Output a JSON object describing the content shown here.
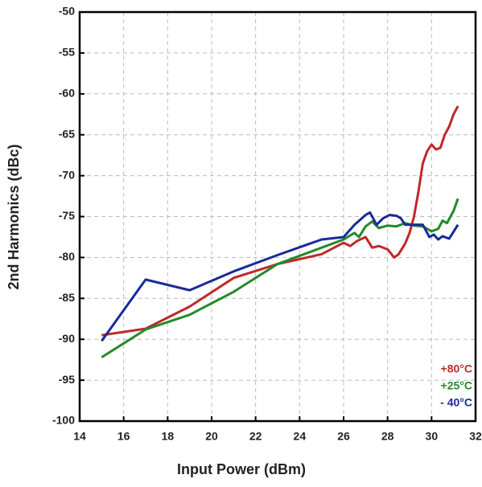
{
  "chart_data": {
    "type": "line",
    "xlabel": "Input Power (dBm)",
    "ylabel": "2nd Harmonics (dBc)",
    "xlim": [
      14,
      32
    ],
    "xticks": [
      14,
      16,
      18,
      20,
      22,
      24,
      26,
      28,
      30,
      32
    ],
    "ylim": [
      -100,
      -50
    ],
    "yticks": [
      -100,
      -95,
      -90,
      -85,
      -80,
      -75,
      -70,
      -65,
      -60,
      -55,
      -50
    ],
    "grid": true,
    "legend": "lower right",
    "series": [
      {
        "name": "+80°C",
        "color": "#c0282a",
        "x": [
          15,
          17,
          19,
          21,
          23,
          25,
          26,
          26.3,
          26.6,
          27,
          27.3,
          27.6,
          28,
          28.3,
          28.5,
          28.8,
          29,
          29.2,
          29.4,
          29.6,
          29.8,
          30,
          30.2,
          30.4,
          30.6,
          30.8,
          31,
          31.2
        ],
        "values": [
          -89.5,
          -88.7,
          -86,
          -82.5,
          -80.8,
          -79.6,
          -78.2,
          -78.6,
          -78,
          -77.5,
          -78.8,
          -78.6,
          -79,
          -80,
          -79.6,
          -78.3,
          -77,
          -75,
          -72,
          -68.5,
          -67,
          -66.2,
          -66.8,
          -66.6,
          -65,
          -64,
          -62.5,
          -61.5
        ]
      },
      {
        "name": "+25°C",
        "color": "#238a2a",
        "x": [
          15,
          17,
          19,
          21,
          23,
          25,
          26,
          26.3,
          26.5,
          26.7,
          27,
          27.3,
          27.6,
          28,
          28.4,
          28.8,
          29.2,
          29.6,
          30,
          30.3,
          30.5,
          30.7,
          31,
          31.2
        ],
        "values": [
          -92.2,
          -88.8,
          -87,
          -84.2,
          -80.8,
          -78.8,
          -77.8,
          -77.3,
          -77,
          -77.5,
          -76.2,
          -75.6,
          -76.4,
          -76.1,
          -76.2,
          -75.8,
          -76.1,
          -76.2,
          -76.8,
          -76.5,
          -75.5,
          -75.8,
          -74.3,
          -72.8
        ]
      },
      {
        "name": "- 40°C",
        "color": "#1a2a9a",
        "x": [
          15,
          17,
          19,
          21,
          23,
          25,
          26,
          26.5,
          27,
          27.2,
          27.5,
          27.8,
          28.1,
          28.4,
          28.6,
          28.8,
          29.2,
          29.6,
          29.9,
          30.1,
          30.3,
          30.5,
          30.8,
          31.2
        ],
        "values": [
          -90.2,
          -82.7,
          -84,
          -81.7,
          -79.7,
          -77.8,
          -77.5,
          -76,
          -74.8,
          -74.5,
          -76,
          -75.2,
          -74.8,
          -74.9,
          -75.2,
          -76,
          -76,
          -76,
          -77.5,
          -77.2,
          -77.8,
          -77.4,
          -77.7,
          -76
        ]
      }
    ]
  }
}
